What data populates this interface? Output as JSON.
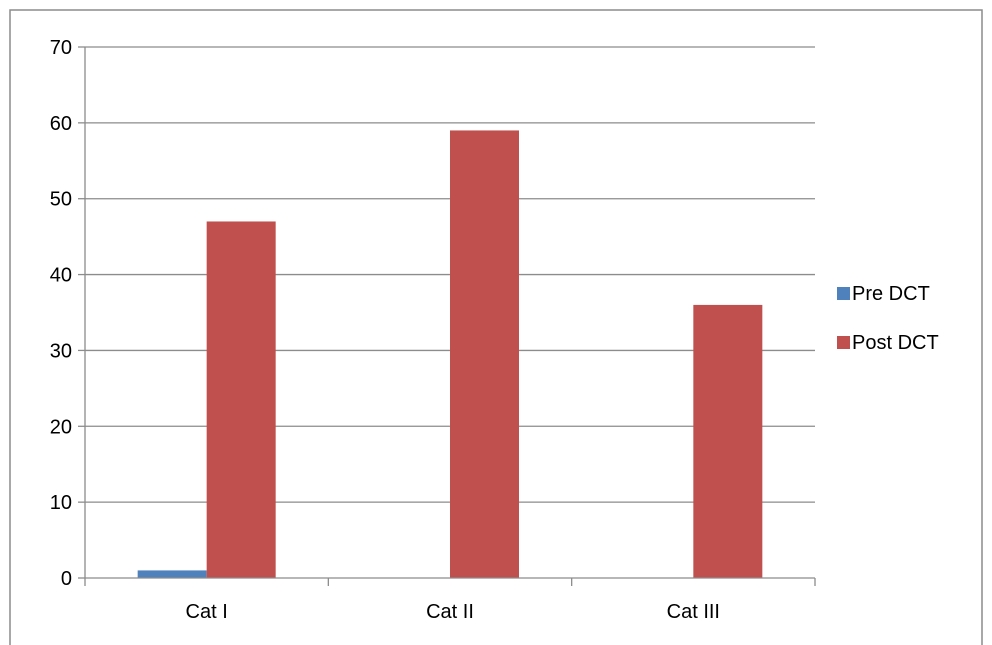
{
  "chart_data": {
    "type": "bar",
    "title": "",
    "xlabel": "",
    "ylabel": "",
    "categories": [
      "Cat I",
      "Cat II",
      "Cat III"
    ],
    "series": [
      {
        "name": "Pre DCT",
        "values": [
          1,
          0,
          0
        ],
        "color": "#4f81bd"
      },
      {
        "name": "Post DCT",
        "values": [
          47,
          59,
          36
        ],
        "color": "#c0504d"
      }
    ],
    "ylim": [
      0,
      70
    ],
    "yticks": [
      0,
      10,
      20,
      30,
      40,
      50,
      60,
      70
    ],
    "grid": true,
    "legend_position": "right"
  }
}
